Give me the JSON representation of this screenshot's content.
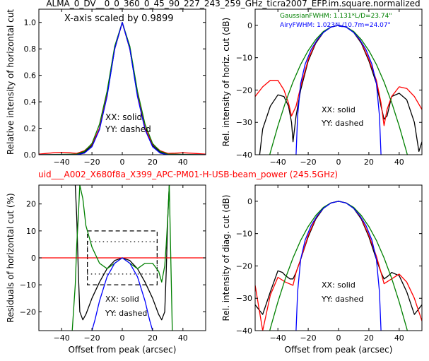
{
  "title": "ALMA_0_DV__0_0_360_0_45_90_227_243_259_GHz_ticra2007_EFP.im.square.normalized",
  "subtitle": "uid___A002_X680f8a_X399_APC-PM01-H-USB-beam_power (245.5GHz)",
  "colors": {
    "black": "#000000",
    "red": "#ff0000",
    "green": "#008000",
    "blue": "#0000ff"
  },
  "chart_data": [
    {
      "type": "line",
      "id": "top-left",
      "xlabel": "",
      "ylabel": "Relative intensity of horizontal cut",
      "xlim": [
        -55,
        55
      ],
      "ylim": [
        0,
        1.1
      ],
      "xticks": [
        -40,
        -20,
        0,
        20,
        40
      ],
      "yticks": [
        0.0,
        0.2,
        0.4,
        0.6,
        0.8,
        1.0
      ],
      "annotations": [
        "X-axis scaled by 0.9899",
        "XX: solid",
        "YY: dashed"
      ],
      "series": [
        {
          "color": "black",
          "x": [
            -55,
            -40,
            -30,
            -25,
            -20,
            -15,
            -10,
            -5,
            0,
            5,
            10,
            15,
            20,
            25,
            30,
            40,
            55
          ],
          "y": [
            0.0,
            0.0,
            0.003,
            0.02,
            0.07,
            0.2,
            0.45,
            0.8,
            1.0,
            0.8,
            0.45,
            0.2,
            0.07,
            0.02,
            0.003,
            0.0,
            0.0
          ]
        },
        {
          "color": "red",
          "x": [
            -55,
            -45,
            -40,
            -35,
            -30,
            -25,
            -20,
            -15,
            -10,
            -5,
            0,
            5,
            10,
            15,
            20,
            25,
            30,
            35,
            40,
            45,
            55
          ],
          "y": [
            0.005,
            0.015,
            0.018,
            0.015,
            0.01,
            0.03,
            0.08,
            0.2,
            0.46,
            0.8,
            1.0,
            0.8,
            0.46,
            0.2,
            0.08,
            0.03,
            0.01,
            0.012,
            0.015,
            0.012,
            0.005
          ]
        },
        {
          "color": "green",
          "x": [
            -55,
            -30,
            -25,
            -20,
            -15,
            -10,
            -5,
            0,
            5,
            10,
            15,
            20,
            25,
            30,
            55
          ],
          "y": [
            0.0,
            0.005,
            0.025,
            0.085,
            0.23,
            0.48,
            0.82,
            1.0,
            0.82,
            0.48,
            0.23,
            0.085,
            0.025,
            0.005,
            0.0
          ]
        },
        {
          "color": "blue",
          "x": [
            -55,
            -30,
            -25,
            -20,
            -15,
            -10,
            -5,
            0,
            5,
            10,
            15,
            20,
            25,
            30,
            55
          ],
          "y": [
            0.0,
            0.0,
            0.012,
            0.06,
            0.19,
            0.44,
            0.8,
            1.0,
            0.8,
            0.44,
            0.19,
            0.06,
            0.012,
            0.0,
            0.0
          ]
        }
      ]
    },
    {
      "type": "line",
      "id": "top-right",
      "xlabel": "",
      "ylabel": "Rel. intensity of horiz. cut (dB)",
      "xlim": [
        -55,
        55
      ],
      "ylim": [
        -40,
        5
      ],
      "xticks": [
        -40,
        -20,
        0,
        20,
        40
      ],
      "yticks": [
        0,
        -10,
        -20,
        -30,
        -40
      ],
      "annotations": [
        "GaussianFWHM: 1.131*L/D=23.74\"",
        "AiryFWHM: 1.023*L/10.7m=24.07\"",
        "XX: solid",
        "YY: dashed"
      ],
      "series": [
        {
          "color": "black",
          "x": [
            -52,
            -50,
            -45,
            -40,
            -36,
            -33,
            -31,
            -30,
            -28,
            -25,
            -20,
            -15,
            -10,
            -5,
            0,
            5,
            10,
            15,
            20,
            25,
            28,
            30,
            32,
            35,
            40,
            45,
            50,
            53,
            55
          ],
          "y": [
            -40,
            -32,
            -25,
            -21.5,
            -22,
            -25,
            -30,
            -36,
            -28,
            -20,
            -11,
            -5.5,
            -2.2,
            -0.5,
            0,
            -0.5,
            -2.2,
            -5.5,
            -11,
            -18,
            -25,
            -29,
            -28,
            -22,
            -21,
            -23,
            -30,
            -39,
            -36
          ]
        },
        {
          "color": "red",
          "x": [
            -55,
            -50,
            -45,
            -40,
            -36,
            -33,
            -31,
            -28,
            -25,
            -20,
            -15,
            -10,
            -5,
            0,
            5,
            10,
            15,
            20,
            25,
            28,
            30,
            32,
            35,
            40,
            45,
            50,
            55
          ],
          "y": [
            -22,
            -19,
            -17,
            -17,
            -20,
            -24,
            -28,
            -25,
            -19,
            -10.5,
            -5.2,
            -2.1,
            -0.5,
            0,
            -0.5,
            -2.1,
            -5.2,
            -10.5,
            -17,
            -24,
            -31,
            -26,
            -22,
            -19,
            -19.5,
            -22,
            -26
          ]
        },
        {
          "color": "green",
          "x": [
            -50,
            -45,
            -40,
            -35,
            -30,
            -25,
            -20,
            -15,
            -10,
            -5,
            0,
            5,
            10,
            15,
            20,
            25,
            30,
            35,
            40,
            45,
            50
          ],
          "y": [
            -48.6,
            -39.3,
            -31.1,
            -23.8,
            -17.5,
            -12.1,
            -7.8,
            -4.4,
            -1.9,
            -0.5,
            0,
            -0.5,
            -1.9,
            -4.4,
            -7.8,
            -12.1,
            -17.5,
            -23.8,
            -31.1,
            -39.3,
            -48.6
          ]
        },
        {
          "color": "blue",
          "x": [
            -28,
            -27,
            -25,
            -22,
            -18,
            -14,
            -10,
            -5,
            0,
            5,
            10,
            14,
            18,
            22,
            25,
            27,
            28
          ],
          "y": [
            -40,
            -28,
            -18,
            -12,
            -7.4,
            -4.4,
            -2.2,
            -0.55,
            0,
            -0.55,
            -2.2,
            -4.4,
            -7.4,
            -12,
            -18,
            -28,
            -40
          ]
        }
      ]
    },
    {
      "type": "line",
      "id": "bottom-left",
      "xlabel": "Offset from peak (arcsec)",
      "ylabel": "Residuals of horizontal cut (%)",
      "xlim": [
        -55,
        55
      ],
      "ylim": [
        -27,
        27
      ],
      "xticks": [
        -40,
        -20,
        0,
        20,
        40
      ],
      "yticks": [
        20,
        10,
        0,
        -10,
        -20
      ],
      "annotations": [
        "XX: solid",
        "YY: dashed"
      ],
      "series": [
        {
          "color": "black",
          "x": [
            -31,
            -30,
            -29,
            -28,
            -26,
            -24,
            -20,
            -15,
            -10,
            -5,
            0,
            5,
            10,
            15,
            20,
            24,
            26,
            28,
            29,
            30,
            31
          ],
          "y": [
            27,
            15,
            -5,
            -20,
            -23,
            -21,
            -15,
            -9,
            -4,
            -1,
            0,
            -1,
            -4,
            -9,
            -15,
            -21,
            -23,
            -20,
            -5,
            15,
            27
          ]
        },
        {
          "color": "red",
          "x": [
            -55,
            55
          ],
          "y": [
            0,
            0
          ]
        },
        {
          "color": "green",
          "x": [
            -33,
            -31,
            -30,
            -29,
            -28,
            -26,
            -24,
            -20,
            -15,
            -10,
            -5,
            0,
            5,
            10,
            15,
            20,
            24,
            26,
            28,
            29,
            30,
            31,
            33
          ],
          "y": [
            -27,
            -10,
            5,
            15,
            27,
            22,
            12,
            4,
            -2,
            -4,
            -2,
            0,
            -2,
            -4,
            -2,
            -2,
            -5,
            -9,
            -3,
            5,
            15,
            27,
            -27
          ]
        },
        {
          "color": "blue",
          "x": [
            -20,
            -18,
            -15,
            -10,
            -5,
            0,
            5,
            10,
            15,
            18,
            20
          ],
          "y": [
            -27,
            -23,
            -16,
            -7,
            -2,
            0,
            -2,
            -7,
            -16,
            -23,
            -27
          ]
        }
      ]
    },
    {
      "type": "line",
      "id": "bottom-right",
      "xlabel": "Offset from peak (arcsec)",
      "ylabel": "Rel. intensity of diag. cut (dB)",
      "xlim": [
        -55,
        55
      ],
      "ylim": [
        -40,
        5
      ],
      "xticks": [
        -40,
        -20,
        0,
        20,
        40
      ],
      "yticks": [
        0,
        -10,
        -20,
        -30,
        -40
      ],
      "annotations": [
        "XX: solid",
        "YY: dashed"
      ],
      "series": [
        {
          "color": "black",
          "x": [
            -55,
            -50,
            -45,
            -40,
            -37,
            -35,
            -32,
            -30,
            -28,
            -25,
            -20,
            -15,
            -10,
            -5,
            0,
            5,
            10,
            15,
            20,
            25,
            28,
            30,
            33,
            35,
            40,
            45,
            50,
            55
          ],
          "y": [
            -32,
            -35,
            -28,
            -21.5,
            -22,
            -23,
            -24,
            -24,
            -22,
            -18,
            -11,
            -5.5,
            -2.2,
            -0.5,
            0,
            -0.5,
            -2.2,
            -5.5,
            -11,
            -18,
            -22,
            -24,
            -23,
            -22,
            -23,
            -28,
            -35,
            -32
          ]
        },
        {
          "color": "red",
          "x": [
            -55,
            -50,
            -45,
            -40,
            -35,
            -30,
            -28,
            -25,
            -20,
            -15,
            -10,
            -5,
            0,
            5,
            10,
            15,
            20,
            25,
            28,
            30,
            35,
            40,
            45,
            50,
            55
          ],
          "y": [
            -26,
            -40,
            -29,
            -23.5,
            -25,
            -26,
            -22,
            -18,
            -10.5,
            -5.2,
            -2.1,
            -0.5,
            0,
            -0.5,
            -2.1,
            -5.2,
            -10.5,
            -17,
            -22,
            -25.5,
            -24,
            -22.5,
            -25,
            -30,
            -37
          ]
        },
        {
          "color": "green",
          "x": [
            -50,
            -45,
            -40,
            -35,
            -30,
            -25,
            -20,
            -15,
            -10,
            -5,
            0,
            5,
            10,
            15,
            20,
            25,
            30,
            35,
            40,
            45,
            50
          ],
          "y": [
            -48.6,
            -39.3,
            -31.1,
            -23.8,
            -17.5,
            -12.1,
            -7.8,
            -4.4,
            -1.9,
            -0.5,
            0,
            -0.5,
            -1.9,
            -4.4,
            -7.8,
            -12.1,
            -17.5,
            -23.8,
            -31.1,
            -39.3,
            -48.6
          ]
        },
        {
          "color": "blue",
          "x": [
            -28,
            -27,
            -25,
            -22,
            -18,
            -14,
            -10,
            -5,
            0,
            5,
            10,
            14,
            18,
            22,
            25,
            27,
            28
          ],
          "y": [
            -40,
            -28,
            -18,
            -12,
            -7.4,
            -4.4,
            -2.2,
            -0.55,
            0,
            -0.55,
            -2.2,
            -4.4,
            -7.4,
            -12,
            -18,
            -28,
            -40
          ]
        }
      ]
    }
  ]
}
